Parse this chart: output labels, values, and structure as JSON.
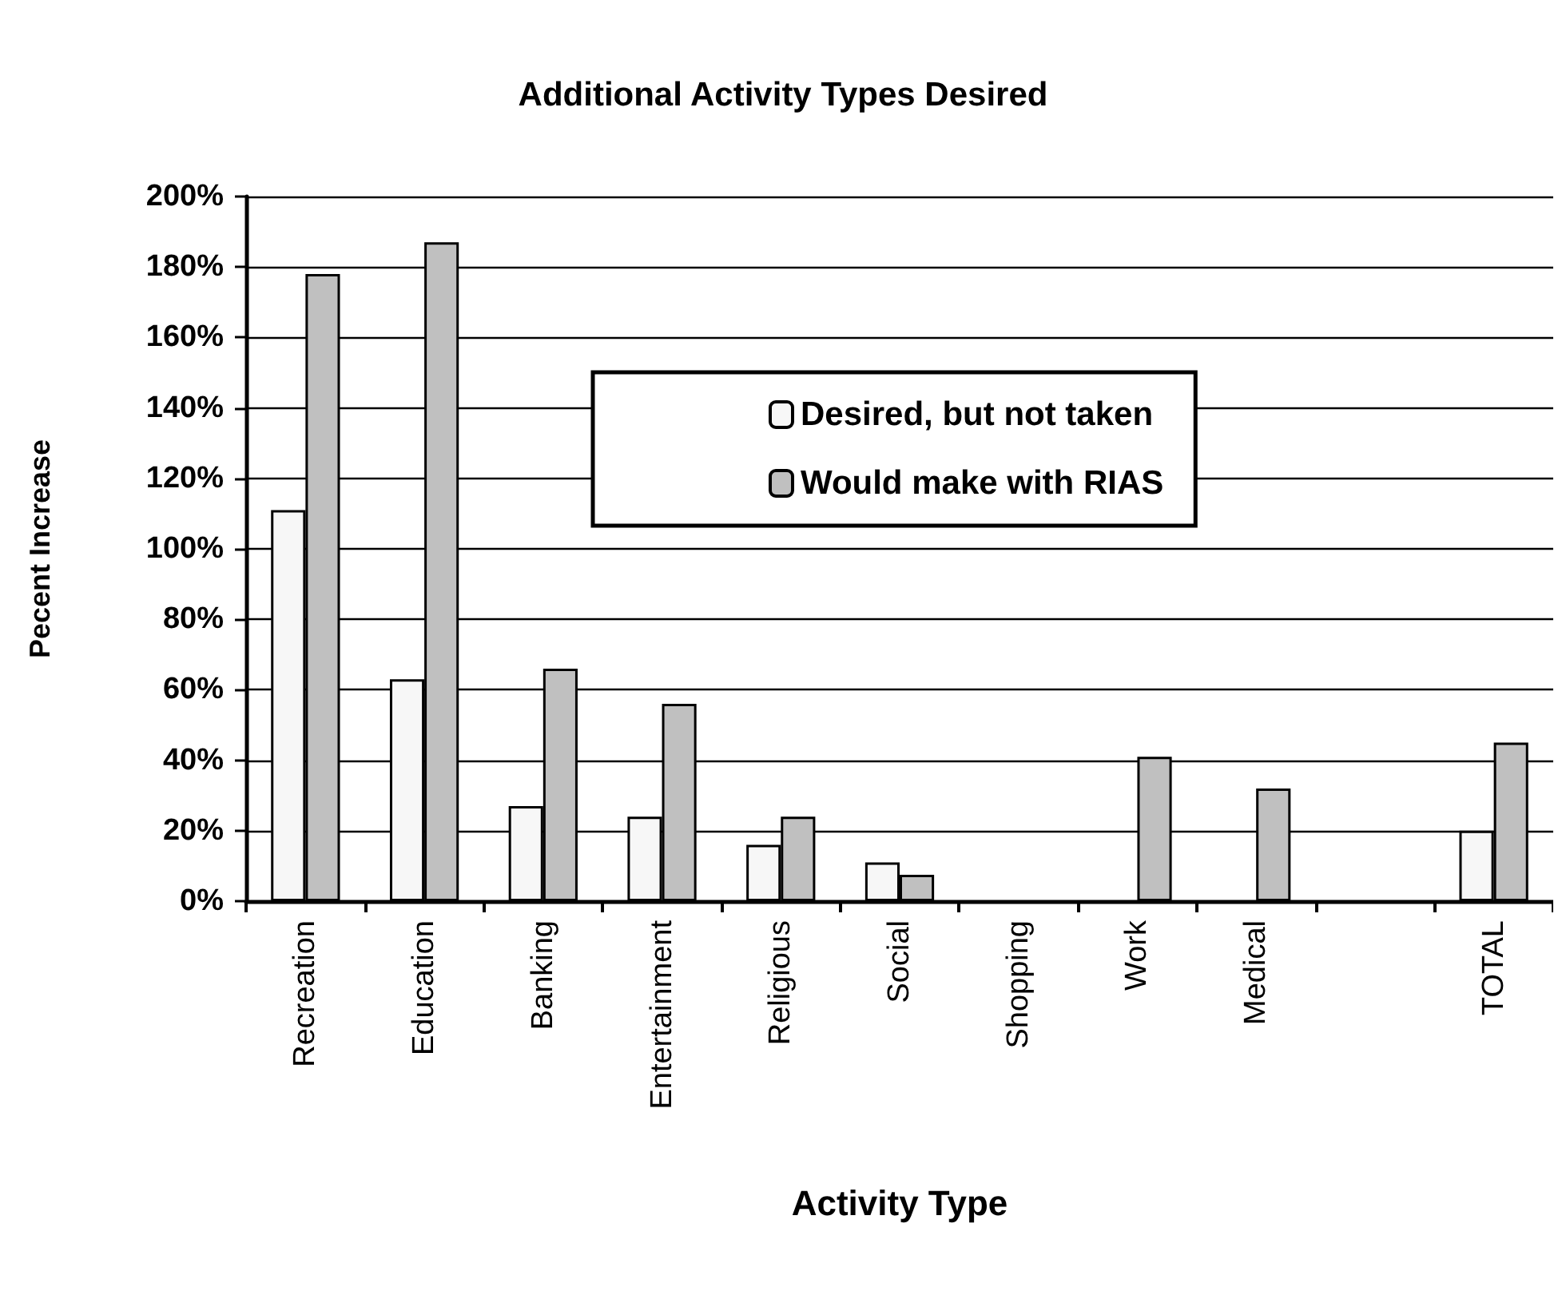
{
  "chart_data": {
    "type": "bar",
    "title": "Additional Activity Types Desired",
    "xlabel": "Activity Type",
    "ylabel": "Pecent Increase",
    "categories": [
      "Recreation",
      "Education",
      "Banking",
      "Entertainment",
      "Religious",
      "Social",
      "Shopping",
      "Work",
      "Medical",
      null,
      "TOTAL"
    ],
    "series": [
      {
        "name": "Desired, but not taken",
        "color": "#f7f7f7",
        "values": [
          111,
          63,
          27,
          24,
          16,
          11,
          null,
          null,
          null,
          null,
          20
        ]
      },
      {
        "name": "Would make with RIAS",
        "color": "#c0c0c0",
        "values": [
          178,
          187,
          66,
          56,
          24,
          7.5,
          null,
          41,
          32,
          null,
          45
        ]
      }
    ],
    "ylim": [
      0,
      200
    ],
    "yticks": [
      {
        "value": 0,
        "label": "0%"
      },
      {
        "value": 20,
        "label": "20%"
      },
      {
        "value": 40,
        "label": "40%"
      },
      {
        "value": 60,
        "label": "60%"
      },
      {
        "value": 80,
        "label": "80%"
      },
      {
        "value": 100,
        "label": "100%"
      },
      {
        "value": 120,
        "label": "120%"
      },
      {
        "value": 140,
        "label": "140%"
      },
      {
        "value": 160,
        "label": "160%"
      },
      {
        "value": 180,
        "label": "180%"
      },
      {
        "value": 200,
        "label": "200%"
      }
    ],
    "grid": "y",
    "legend": "top"
  }
}
